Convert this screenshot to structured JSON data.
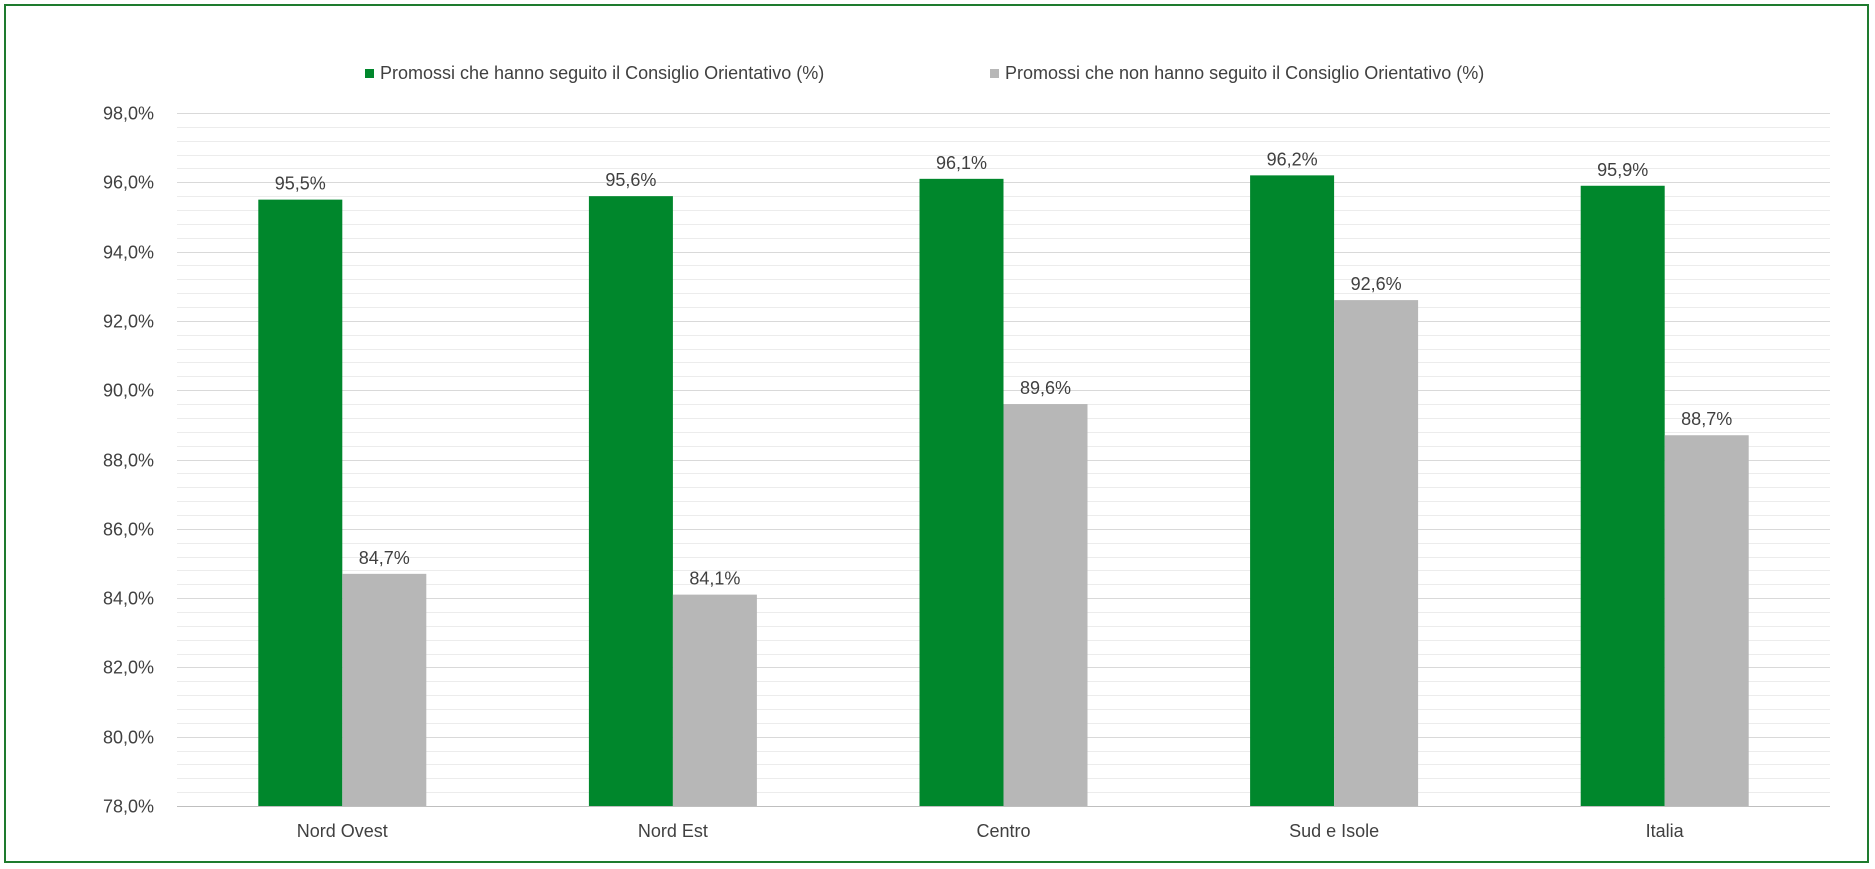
{
  "chart_data": {
    "type": "bar",
    "categories": [
      "Nord Ovest",
      "Nord Est",
      "Centro",
      "Sud e Isole",
      "Italia"
    ],
    "series": [
      {
        "name": "Promossi che hanno seguito il Consiglio Orientativo (%)",
        "color": "#00872c",
        "values": [
          95.5,
          95.6,
          96.1,
          96.2,
          95.9
        ],
        "labels": [
          "95,5%",
          "95,6%",
          "96,1%",
          "96,2%",
          "95,9%"
        ]
      },
      {
        "name": "Promossi che non hanno seguito il Consiglio Orientativo (%)",
        "color": "#b7b7b7",
        "values": [
          84.7,
          84.1,
          89.6,
          92.6,
          88.7
        ],
        "labels": [
          "84,7%",
          "84,1%",
          "89,6%",
          "92,6%",
          "88,7%"
        ]
      }
    ],
    "ylim": [
      78,
      98
    ],
    "ytick_step": 2,
    "yticks": [
      "78,0%",
      "80,0%",
      "82,0%",
      "84,0%",
      "86,0%",
      "88,0%",
      "90,0%",
      "92,0%",
      "94,0%",
      "96,0%",
      "98,0%"
    ],
    "minor_grid_step": 0.4,
    "grid": true,
    "legend_position": "top",
    "gridline_color": "#d9d9d9",
    "frame_color": "#1e7b2e"
  }
}
